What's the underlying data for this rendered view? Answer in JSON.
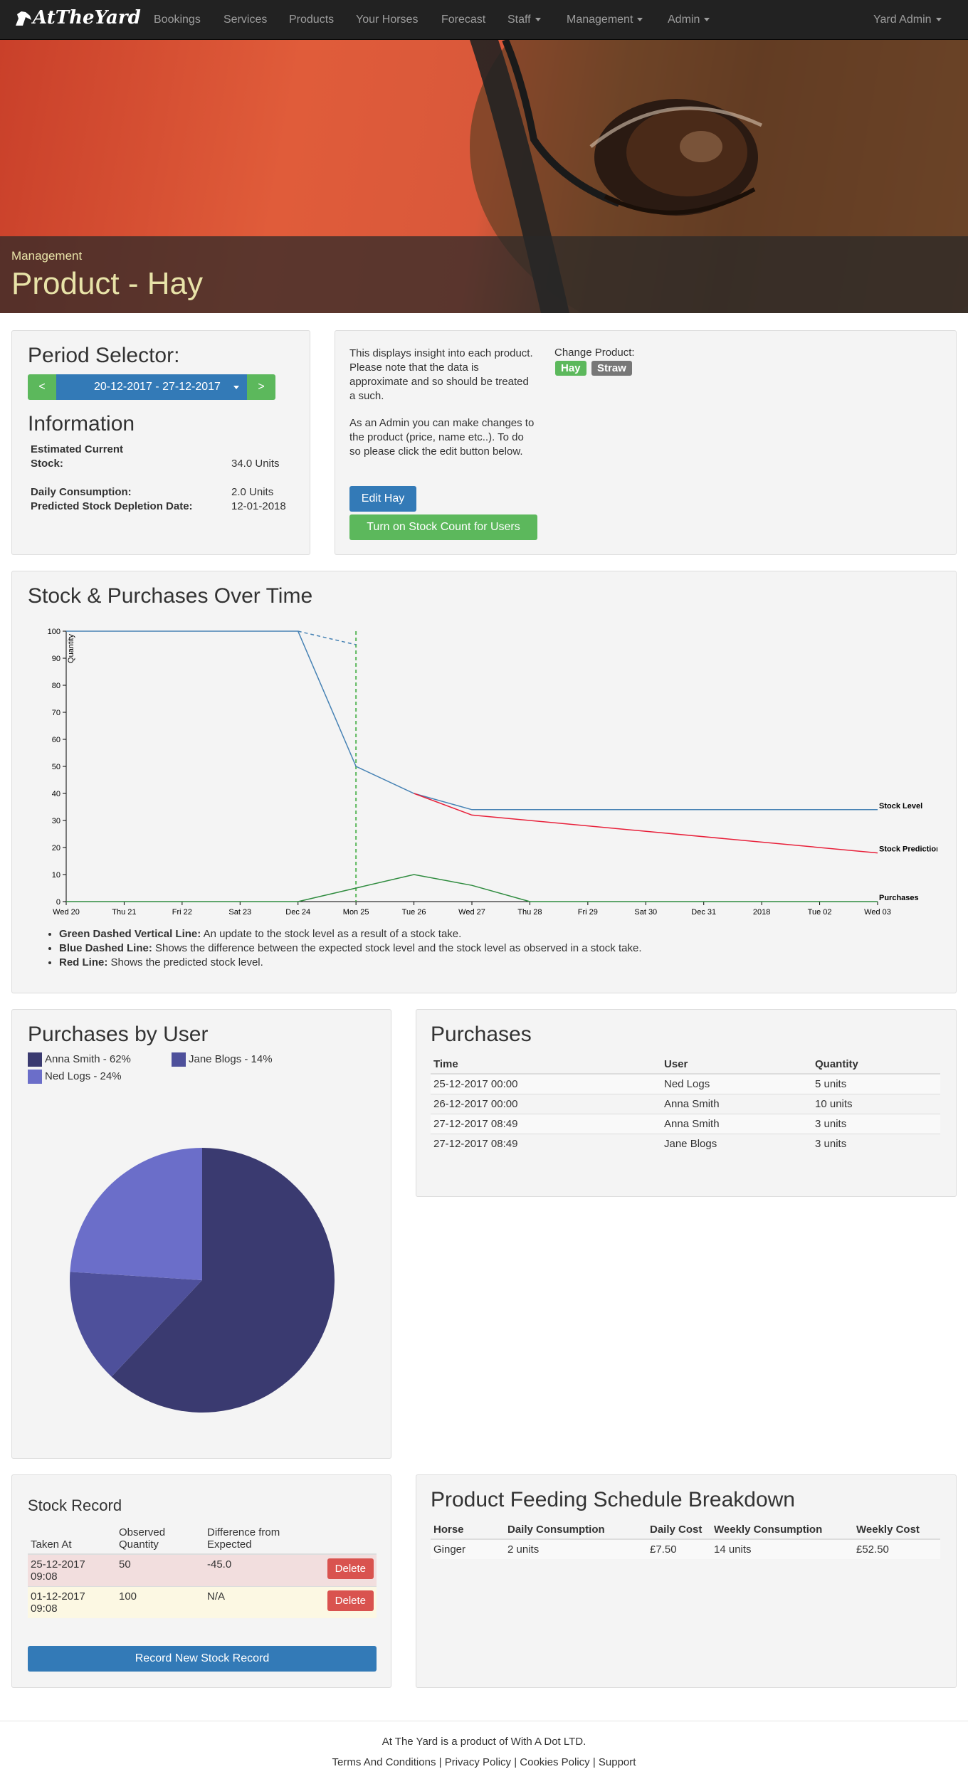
{
  "nav": {
    "brand": "AtTheYard",
    "items": [
      "Bookings",
      "Services",
      "Products",
      "Your Horses",
      "Forecast",
      "Staff",
      "Management",
      "Admin"
    ],
    "user": "Yard Admin"
  },
  "header": {
    "section": "Management",
    "title": "Product - Hay"
  },
  "period": {
    "heading": "Period Selector:",
    "prev": "<",
    "range": "20-12-2017 - 27-12-2017",
    "next": ">"
  },
  "info": {
    "heading": "Information",
    "rows": [
      {
        "label": "Estimated Current Stock:",
        "value": "34.0 Units"
      },
      {
        "label": "Daily Consumption:",
        "value": "2.0 Units"
      },
      {
        "label": "Predicted Stock Depletion Date:",
        "value": "12-01-2018"
      }
    ]
  },
  "insight": {
    "text1": "This displays insight into each product. Please note that the data is approximate and so should be treated a such.",
    "text2": "As an Admin you can make changes to the product (price, name etc..). To do so please click the edit button below.",
    "edit_button": "Edit Hay",
    "stock_count_button": "Turn on Stock Count for Users",
    "change_label": "Change Product:",
    "products": [
      {
        "name": "Hay",
        "color": "#5cb85c"
      },
      {
        "name": "Straw",
        "color": "#777777"
      }
    ]
  },
  "stock_chart": {
    "heading": "Stock & Purchases Over Time",
    "notes": [
      {
        "bold": "Green Dashed Vertical Line:",
        "text": " An update to the stock level as a result of a stock take."
      },
      {
        "bold": "Blue Dashed Line:",
        "text": " Shows the difference between the expected stock level and the stock level as observed in a stock take."
      },
      {
        "bold": "Red Line:",
        "text": " Shows the predicted stock level."
      }
    ]
  },
  "chart_data": [
    {
      "type": "line",
      "title": "",
      "ylabel": "Quantity",
      "xlabel": "",
      "ylim": [
        0,
        100
      ],
      "yticks": [
        0,
        10,
        20,
        30,
        40,
        50,
        60,
        70,
        80,
        90,
        100
      ],
      "x": [
        "Wed 20",
        "Thu 21",
        "Fri 22",
        "Sat 23",
        "Dec 24",
        "Mon 25",
        "Tue 26",
        "Wed 27",
        "Thu 28",
        "Fri 29",
        "Sat 30",
        "Dec 31",
        "2018",
        "Tue 02",
        "Wed 03"
      ],
      "series": [
        {
          "name": "Stock Level",
          "color": "#4682b4",
          "points": [
            [
              0,
              100
            ],
            [
              4,
              100
            ],
            [
              5,
              50
            ],
            [
              6,
              40
            ],
            [
              7,
              34
            ],
            [
              14,
              34
            ]
          ]
        },
        {
          "name": "Stock Prediction",
          "color": "#e8203a",
          "points": [
            [
              6,
              40
            ],
            [
              7,
              32
            ],
            [
              14,
              18
            ]
          ]
        },
        {
          "name": "Purchases",
          "color": "#2e8b3e",
          "points": [
            [
              0,
              0
            ],
            [
              4,
              0
            ],
            [
              5,
              5
            ],
            [
              6,
              10
            ],
            [
              7,
              6
            ],
            [
              8,
              0
            ],
            [
              14,
              0
            ]
          ]
        },
        {
          "name": "",
          "color": "#4682b4",
          "dashed": true,
          "points": [
            [
              4,
              100
            ],
            [
              5,
              95
            ]
          ]
        }
      ],
      "stock_take_x": 5
    },
    {
      "type": "pie",
      "title": "Purchases by User",
      "slices": [
        {
          "name": "Anna Smith",
          "label": "Anna Smith - 62%",
          "value": 62,
          "color": "#3a3a70"
        },
        {
          "name": "Jane Blogs",
          "label": "Jane Blogs - 14%",
          "value": 14,
          "color": "#4e509b"
        },
        {
          "name": "Ned Logs",
          "label": "Ned Logs - 24%",
          "value": 24,
          "color": "#6b6ec9"
        }
      ]
    }
  ],
  "purchases": {
    "heading": "Purchases",
    "columns": [
      "Time",
      "User",
      "Quantity"
    ],
    "rows": [
      [
        "25-12-2017 00:00",
        "Ned Logs",
        "5 units"
      ],
      [
        "26-12-2017 00:00",
        "Anna Smith",
        "10 units"
      ],
      [
        "27-12-2017 08:49",
        "Anna Smith",
        "3 units"
      ],
      [
        "27-12-2017 08:49",
        "Jane Blogs",
        "3 units"
      ]
    ]
  },
  "stock_record": {
    "heading": "Stock Record",
    "columns": [
      "Taken At",
      "Observed Quantity",
      "Difference from Expected"
    ],
    "rows": [
      {
        "taken": "25-12-2017 09:08",
        "observed": "50",
        "diff": "-45.0",
        "bg": "#f2dede"
      },
      {
        "taken": "01-12-2017 09:08",
        "observed": "100",
        "diff": "N/A",
        "bg": "#fcf8e3"
      }
    ],
    "delete_label": "Delete",
    "record_button": "Record New Stock Record"
  },
  "feeding": {
    "heading": "Product Feeding Schedule Breakdown",
    "columns": [
      "Horse",
      "Daily Consumption",
      "Daily Cost",
      "Weekly Consumption",
      "Weekly Cost"
    ],
    "rows": [
      [
        "Ginger",
        "2 units",
        "£7.50",
        "14 units",
        "£52.50"
      ]
    ]
  },
  "footer": {
    "brand": "At The Yard",
    "text": " is a product of With A Dot LTD.",
    "links": [
      "Terms And Conditions",
      "Privacy Policy",
      "Cookies Policy",
      "Support"
    ]
  }
}
